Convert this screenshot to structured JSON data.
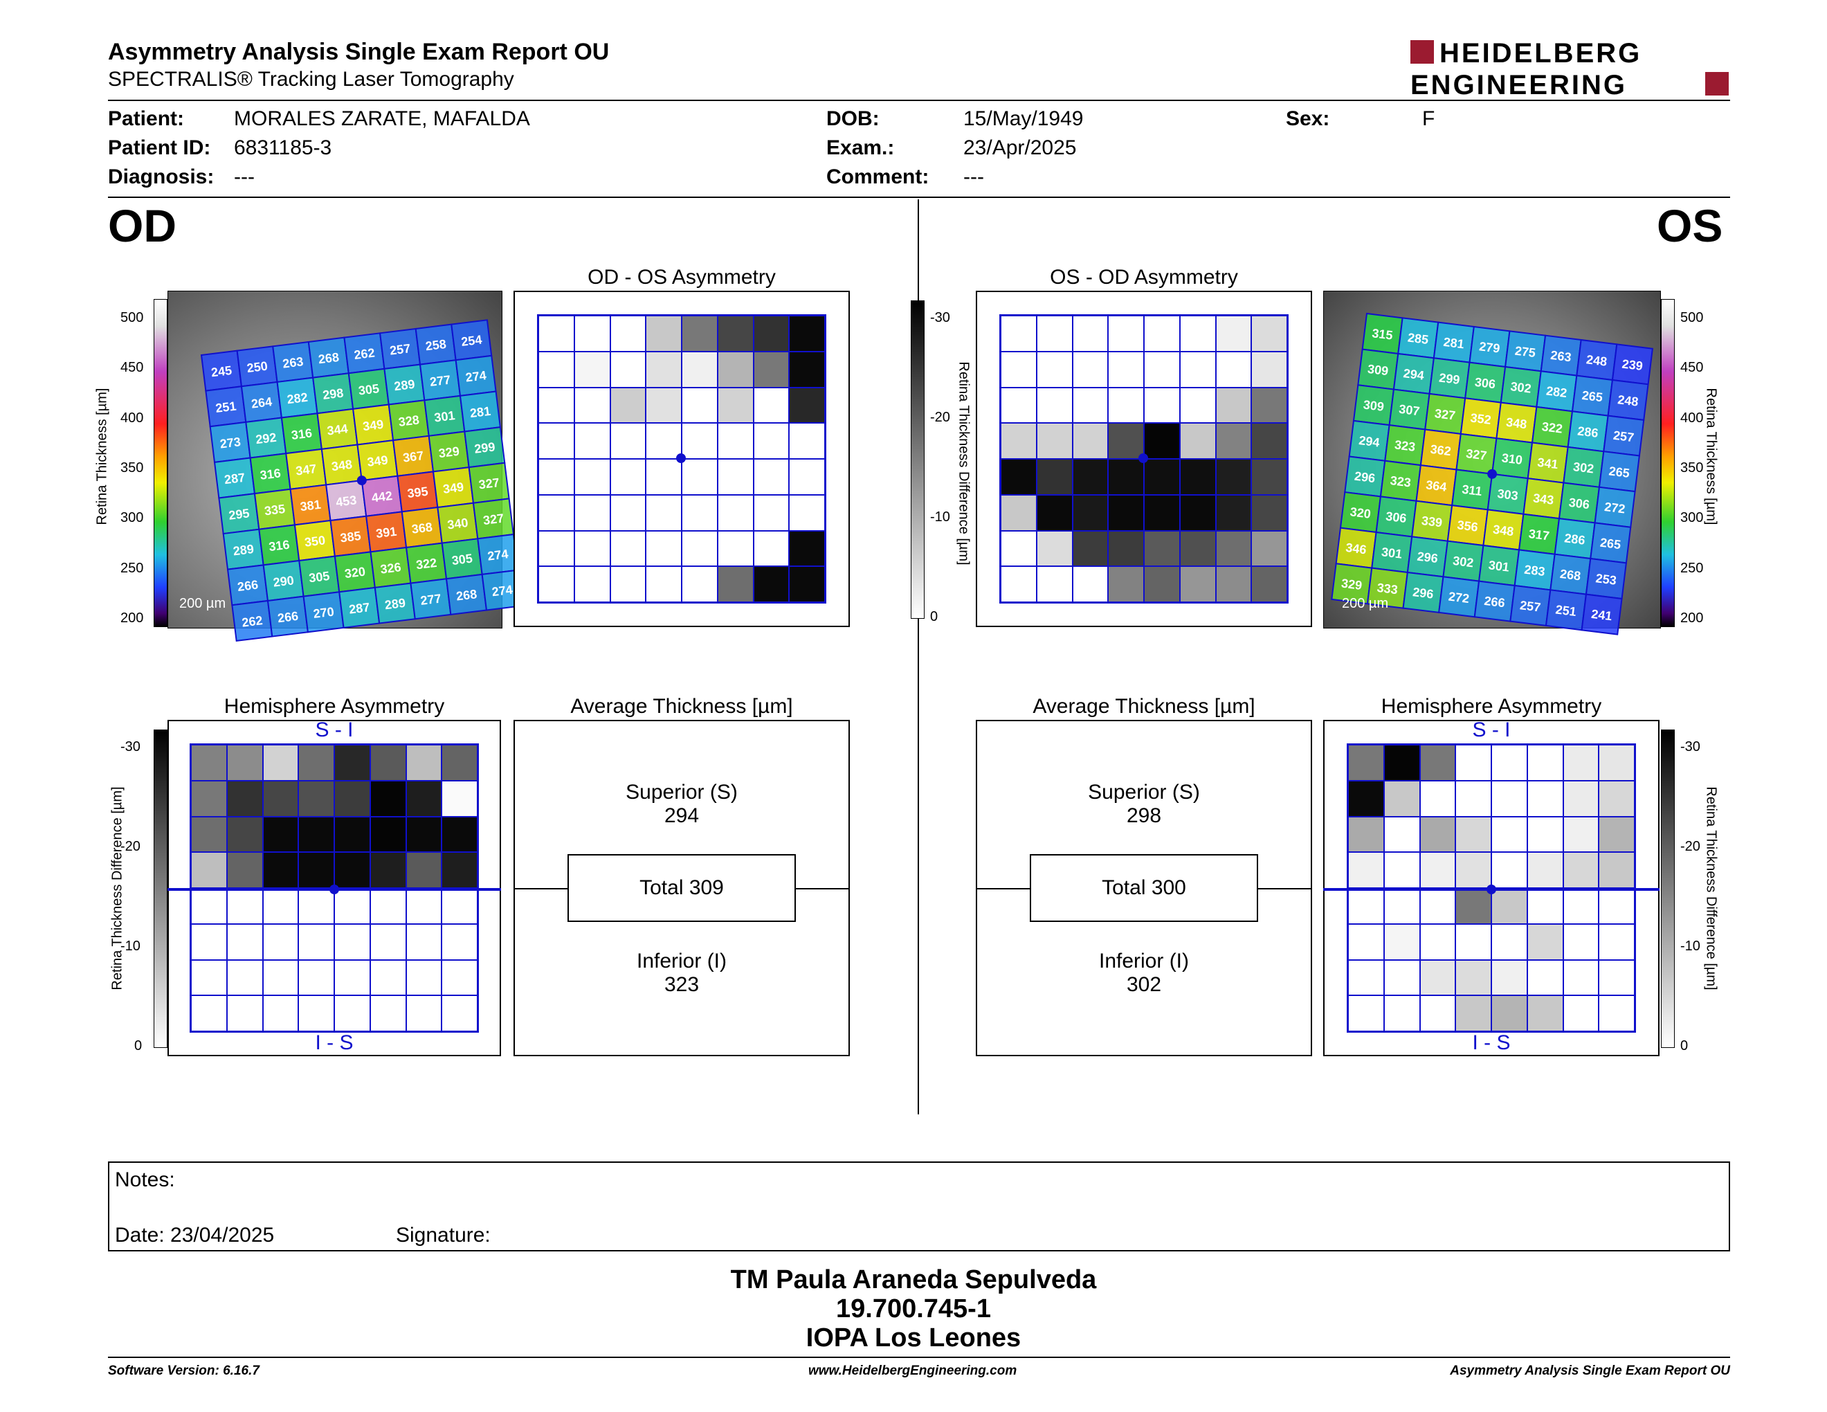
{
  "header": {
    "title": "Asymmetry Analysis Single Exam Report OU",
    "subtitle": "SPECTRALIS® Tracking Laser Tomography",
    "logo_line1": "HEIDELBERG",
    "logo_line2": "ENGINEERING",
    "brand_color": "#9b1b30"
  },
  "patient": {
    "patient_label": "Patient:",
    "patient_value": "MORALES ZARATE, MAFALDA",
    "id_label": "Patient ID:",
    "id_value": "6831185-3",
    "diagnosis_label": "Diagnosis:",
    "diagnosis_value": "---",
    "dob_label": "DOB:",
    "dob_value": "15/May/1949",
    "exam_label": "Exam.:",
    "exam_value": "23/Apr/2025",
    "comment_label": "Comment:",
    "comment_value": "---",
    "sex_label": "Sex:",
    "sex_value": "F"
  },
  "od": {
    "eye_label": "OD",
    "asym_title": "OD - OS Asymmetry",
    "hemi_title": "Hemisphere Asymmetry",
    "avg_title": "Average Thickness [µm]",
    "superior_label": "Superior (S)",
    "superior_value": "294",
    "total_label": "Total 309",
    "inferior_label": "Inferior (I)",
    "inferior_value": "323",
    "scale_label": "200 µm",
    "thickness_grid": [
      [
        245,
        250,
        263,
        268,
        262,
        257,
        258,
        254
      ],
      [
        251,
        264,
        282,
        298,
        305,
        289,
        277,
        274
      ],
      [
        273,
        292,
        316,
        344,
        349,
        328,
        301,
        281
      ],
      [
        287,
        316,
        347,
        348,
        349,
        367,
        329,
        299
      ],
      [
        295,
        335,
        381,
        453,
        442,
        395,
        349,
        327
      ],
      [
        289,
        316,
        350,
        385,
        391,
        368,
        340,
        327
      ],
      [
        266,
        290,
        305,
        320,
        326,
        322,
        305,
        274
      ],
      [
        262,
        266,
        270,
        287,
        289,
        277,
        268,
        274
      ]
    ],
    "asym_gray": [
      [
        255,
        255,
        255,
        200,
        120,
        70,
        50,
        10
      ],
      [
        255,
        245,
        255,
        225,
        240,
        180,
        120,
        10
      ],
      [
        255,
        255,
        205,
        225,
        255,
        210,
        255,
        40
      ],
      [
        255,
        255,
        255,
        255,
        255,
        255,
        255,
        255
      ],
      [
        255,
        255,
        255,
        255,
        255,
        255,
        255,
        255
      ],
      [
        255,
        255,
        255,
        255,
        255,
        255,
        255,
        255
      ],
      [
        255,
        255,
        255,
        255,
        255,
        255,
        255,
        10
      ],
      [
        255,
        255,
        255,
        255,
        255,
        110,
        10,
        10
      ]
    ],
    "hemi_gray": [
      [
        130,
        140,
        210,
        110,
        40,
        90,
        190,
        100
      ],
      [
        120,
        50,
        70,
        80,
        60,
        5,
        30,
        250
      ],
      [
        110,
        70,
        10,
        10,
        10,
        5,
        10,
        10
      ],
      [
        190,
        100,
        10,
        10,
        10,
        30,
        90,
        30
      ],
      [
        255,
        255,
        255,
        255,
        255,
        255,
        255,
        255
      ],
      [
        255,
        255,
        255,
        255,
        255,
        255,
        255,
        255
      ],
      [
        255,
        255,
        255,
        255,
        255,
        255,
        255,
        255
      ],
      [
        255,
        255,
        255,
        255,
        255,
        255,
        255,
        255
      ]
    ]
  },
  "os": {
    "eye_label": "OS",
    "asym_title": "OS - OD Asymmetry",
    "hemi_title": "Hemisphere Asymmetry",
    "avg_title": "Average Thickness [µm]",
    "superior_label": "Superior (S)",
    "superior_value": "298",
    "total_label": "Total 300",
    "inferior_label": "Inferior (I)",
    "inferior_value": "302",
    "scale_label": "200 µm",
    "thickness_grid": [
      [
        315,
        285,
        281,
        279,
        275,
        263,
        248,
        239
      ],
      [
        309,
        294,
        299,
        306,
        302,
        282,
        265,
        248
      ],
      [
        309,
        307,
        327,
        352,
        348,
        322,
        286,
        257
      ],
      [
        294,
        323,
        362,
        327,
        310,
        341,
        302,
        265
      ],
      [
        296,
        323,
        364,
        311,
        303,
        343,
        306,
        272
      ],
      [
        320,
        306,
        339,
        356,
        348,
        317,
        286,
        265
      ],
      [
        346,
        301,
        296,
        302,
        301,
        283,
        268,
        253
      ],
      [
        329,
        333,
        296,
        272,
        266,
        257,
        251,
        241
      ]
    ],
    "asym_gray": [
      [
        255,
        255,
        255,
        255,
        255,
        255,
        240,
        220
      ],
      [
        255,
        255,
        255,
        255,
        255,
        255,
        255,
        230
      ],
      [
        255,
        255,
        255,
        255,
        255,
        255,
        200,
        120
      ],
      [
        210,
        210,
        210,
        80,
        5,
        200,
        130,
        70
      ],
      [
        10,
        50,
        20,
        15,
        15,
        15,
        30,
        70
      ],
      [
        200,
        10,
        25,
        10,
        10,
        10,
        30,
        70
      ],
      [
        255,
        220,
        60,
        60,
        90,
        80,
        110,
        150
      ],
      [
        255,
        255,
        255,
        130,
        100,
        150,
        140,
        100
      ]
    ],
    "hemi_gray": [
      [
        120,
        5,
        120,
        255,
        255,
        255,
        235,
        230
      ],
      [
        10,
        200,
        255,
        255,
        255,
        255,
        235,
        215
      ],
      [
        170,
        255,
        170,
        215,
        255,
        255,
        240,
        180
      ],
      [
        240,
        255,
        240,
        225,
        255,
        235,
        215,
        200
      ],
      [
        255,
        255,
        255,
        120,
        200,
        255,
        255,
        255
      ],
      [
        255,
        245,
        255,
        255,
        255,
        215,
        255,
        255
      ],
      [
        255,
        255,
        230,
        220,
        240,
        255,
        255,
        255
      ],
      [
        255,
        255,
        255,
        200,
        180,
        200,
        255,
        255
      ]
    ]
  },
  "labels": {
    "retina_thickness": "Retina Thickness [µm]",
    "retina_diff": "Retina Thickness Difference [µm]",
    "s_i": "S - I",
    "i_s": "I - S"
  },
  "axis": {
    "thickness_ticks": [
      "500",
      "450",
      "400",
      "350",
      "300",
      "250",
      "200"
    ],
    "diff_ticks": [
      "-30",
      "-20",
      "-10",
      "0"
    ]
  },
  "notes": {
    "notes_label": "Notes:",
    "date_label": "Date: 23/04/2025",
    "signature_label": "Signature:"
  },
  "signature": {
    "name": "TM Paula Araneda Sepulveda",
    "id": "19.700.745-1",
    "place": "IOPA Los Leones"
  },
  "footer": {
    "software": "Software Version: 6.16.7",
    "website": "www.HeidelbergEngineering.com",
    "report": "Asymmetry Analysis Single Exam Report OU"
  }
}
